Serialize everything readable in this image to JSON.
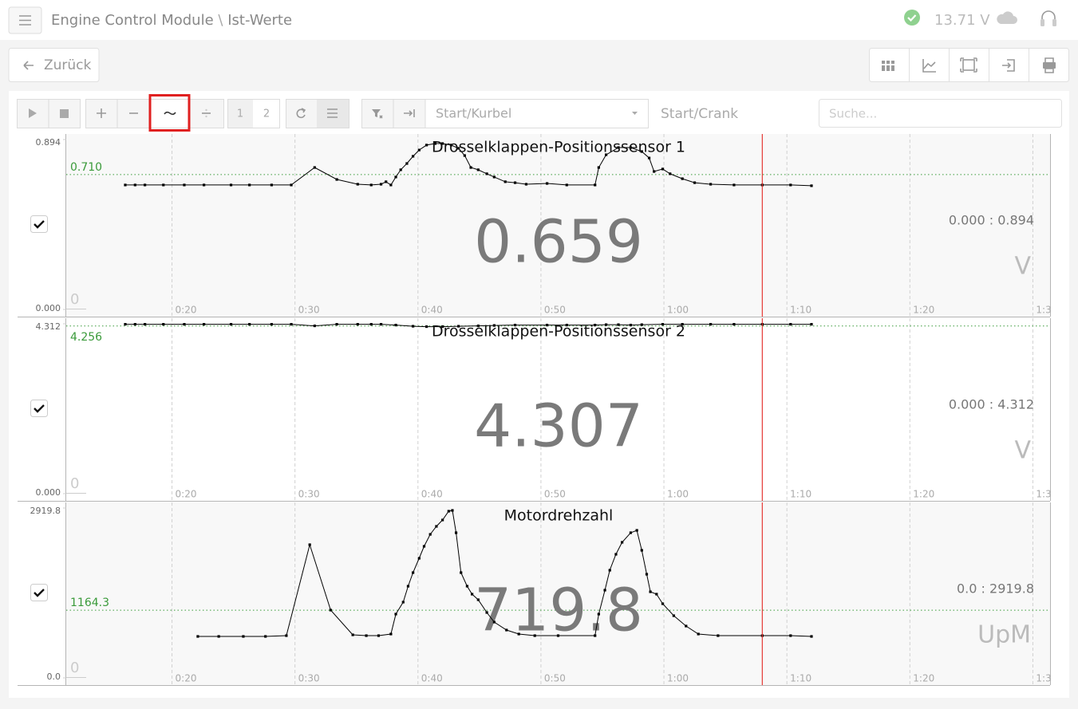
{
  "header": {
    "title": "Engine Control Module",
    "separator": "\\",
    "subtitle": "Ist-Werte",
    "voltage": "13.71 V"
  },
  "nav": {
    "back": "Zurück"
  },
  "toolbar": {
    "page_1": "1",
    "page_2": "2",
    "dropdown": "Start/Kurbel",
    "mode_label": "Start/Crank",
    "search_placeholder": "Suche..."
  },
  "chart_data": [
    {
      "type": "line",
      "title": "Drosselklappen-Positionssensor 1",
      "color": "#000000",
      "x": [
        16.2,
        17.0,
        17.8,
        19.3,
        21.0,
        22.6,
        24.8,
        26.3,
        28.1,
        29.7,
        31.6,
        33.4,
        35.1,
        36.2,
        37.0,
        37.4,
        37.8,
        38.2,
        38.6,
        39.1,
        39.6,
        40.1,
        40.7,
        41.4,
        42.0,
        42.7,
        43.3,
        43.8,
        44.3,
        44.9,
        45.6,
        46.2,
        47.1,
        47.9,
        48.8,
        50.5,
        52.1,
        54.4,
        54.7,
        55.3,
        56.3,
        57.3,
        58.2,
        58.8,
        59.2,
        59.9,
        60.5,
        61.5,
        62.5,
        63.8,
        65.7,
        68.0,
        70.3,
        72.0
      ],
      "values": [
        0.655,
        0.655,
        0.655,
        0.655,
        0.655,
        0.655,
        0.655,
        0.655,
        0.655,
        0.655,
        0.747,
        0.684,
        0.659,
        0.655,
        0.659,
        0.672,
        0.655,
        0.697,
        0.735,
        0.768,
        0.806,
        0.839,
        0.865,
        0.873,
        0.873,
        0.865,
        0.848,
        0.81,
        0.747,
        0.735,
        0.714,
        0.697,
        0.672,
        0.667,
        0.659,
        0.663,
        0.655,
        0.655,
        0.747,
        0.814,
        0.852,
        0.852,
        0.831,
        0.797,
        0.726,
        0.739,
        0.714,
        0.688,
        0.667,
        0.659,
        0.655,
        0.655,
        0.655,
        0.651
      ],
      "xlim": [
        11.4,
        91.4
      ],
      "xticks": [
        {
          "value": 20,
          "label": "0:20"
        },
        {
          "value": 30,
          "label": "0:30"
        },
        {
          "value": 40,
          "label": "0:40"
        },
        {
          "value": 50,
          "label": "0:50"
        },
        {
          "value": 60,
          "label": "1:00"
        },
        {
          "value": 70,
          "label": "1:10"
        },
        {
          "value": 80,
          "label": "1:20"
        },
        {
          "value": 90,
          "label": "1:3"
        }
      ],
      "ylim": [
        0,
        0.894
      ],
      "yticks": [
        0.894,
        {
          "value": 0,
          "label": "0.000"
        }
      ],
      "threshold": {
        "value": 0.71,
        "label": "0.710"
      },
      "threshold_color": "#3a9a3a",
      "current_value": 0.659,
      "range_label": "0.000 : 0.894",
      "unit": "V",
      "baseline_label": 0,
      "cursor_x": 68.0,
      "cursor_color": "#e53935",
      "grid": true,
      "checked": true
    },
    {
      "type": "line",
      "title": "Drosselklappen-Positionssensor 2",
      "color": "#000000",
      "x": [
        16.2,
        17.0,
        17.8,
        19.3,
        21.0,
        22.6,
        24.8,
        26.3,
        28.1,
        29.7,
        31.6,
        33.4,
        35.1,
        36.2,
        37.0,
        38.2,
        39.6,
        40.7,
        42.0,
        43.3,
        44.9,
        46.2,
        47.9,
        50.5,
        52.1,
        54.4,
        55.3,
        56.3,
        57.3,
        58.2,
        59.9,
        61.5,
        63.8,
        65.7,
        68.0,
        70.3,
        72.0
      ],
      "values": [
        4.3,
        4.3,
        4.3,
        4.3,
        4.3,
        4.3,
        4.3,
        4.3,
        4.3,
        4.3,
        4.26,
        4.3,
        4.3,
        4.3,
        4.3,
        4.28,
        4.25,
        4.24,
        4.24,
        4.25,
        4.26,
        4.27,
        4.28,
        4.28,
        4.28,
        4.28,
        4.29,
        4.29,
        4.28,
        4.29,
        4.3,
        4.3,
        4.3,
        4.3,
        4.3,
        4.3,
        4.3
      ],
      "xlim": [
        11.4,
        91.4
      ],
      "xticks": [
        {
          "value": 20,
          "label": "0:20"
        },
        {
          "value": 30,
          "label": "0:30"
        },
        {
          "value": 40,
          "label": "0:40"
        },
        {
          "value": 50,
          "label": "0:50"
        },
        {
          "value": 60,
          "label": "1:00"
        },
        {
          "value": 70,
          "label": "1:10"
        },
        {
          "value": 80,
          "label": "1:20"
        },
        {
          "value": 90,
          "label": "1:3"
        }
      ],
      "ylim": [
        0,
        4.312
      ],
      "yticks": [
        4.312,
        {
          "value": 0,
          "label": "0.000"
        }
      ],
      "threshold": 4.256,
      "threshold_color": "#3a9a3a",
      "current_value": 4.307,
      "range_label": "0.000 : 4.312",
      "unit": "V",
      "baseline_label": 0,
      "cursor_x": 68.0,
      "cursor_color": "#e53935",
      "grid": true,
      "checked": true
    },
    {
      "type": "line",
      "title": "Motordrehzahl",
      "color": "#000000",
      "x": [
        22.1,
        23.8,
        25.8,
        27.6,
        29.3,
        31.2,
        32.9,
        34.7,
        35.8,
        36.8,
        37.8,
        38.2,
        38.8,
        39.2,
        39.6,
        40.1,
        40.5,
        41.0,
        41.5,
        42.0,
        42.5,
        42.8,
        43.1,
        43.5,
        44.0,
        44.4,
        44.9,
        45.6,
        46.2,
        47.2,
        48.2,
        49.5,
        51.4,
        54.4,
        54.7,
        55.2,
        55.6,
        56.1,
        56.6,
        57.3,
        57.8,
        58.2,
        58.6,
        58.9,
        59.4,
        59.9,
        60.8,
        61.8,
        62.8,
        64.4,
        68.0,
        70.3,
        72.0
      ],
      "values": [
        712.8,
        712.8,
        712.8,
        712.8,
        726.5,
        2289.2,
        1165.2,
        740.2,
        726.5,
        726.5,
        753.9,
        1096.6,
        1302.3,
        1576.4,
        1809.4,
        2056.2,
        2261.8,
        2467.4,
        2604.5,
        2714.2,
        2865.0,
        2878.7,
        2495.0,
        1809.4,
        1576.4,
        1439.3,
        1343.4,
        1124.1,
        959.6,
        822.5,
        753.9,
        726.5,
        726.5,
        726.5,
        1096.6,
        1507.9,
        1850.6,
        2124.7,
        2330.4,
        2495.0,
        2536.0,
        2193.3,
        1782.0,
        1480.5,
        1439.3,
        1275.0,
        1069.2,
        891.1,
        753.9,
        726.5,
        726.5,
        726.5,
        712.8
      ],
      "xlim": [
        11.4,
        91.4
      ],
      "xticks": [
        {
          "value": 20,
          "label": "0:20"
        },
        {
          "value": 30,
          "label": "0:30"
        },
        {
          "value": 40,
          "label": "0:40"
        },
        {
          "value": 50,
          "label": "0:50"
        },
        {
          "value": 60,
          "label": "1:00"
        },
        {
          "value": 70,
          "label": "1:10"
        },
        {
          "value": 80,
          "label": "1:20"
        },
        {
          "value": 90,
          "label": "1:3"
        }
      ],
      "ylim": [
        0,
        2919.8
      ],
      "yticks": [
        2919.8,
        {
          "value": 0,
          "label": "0.0"
        }
      ],
      "threshold": 1164.3,
      "threshold_color": "#3a9a3a",
      "current_value": 719.8,
      "range_label": "0.0 : 2919.8",
      "unit": "UpM",
      "baseline_label": 0,
      "cursor_x": 68.0,
      "cursor_color": "#e53935",
      "grid": true,
      "checked": true
    }
  ]
}
